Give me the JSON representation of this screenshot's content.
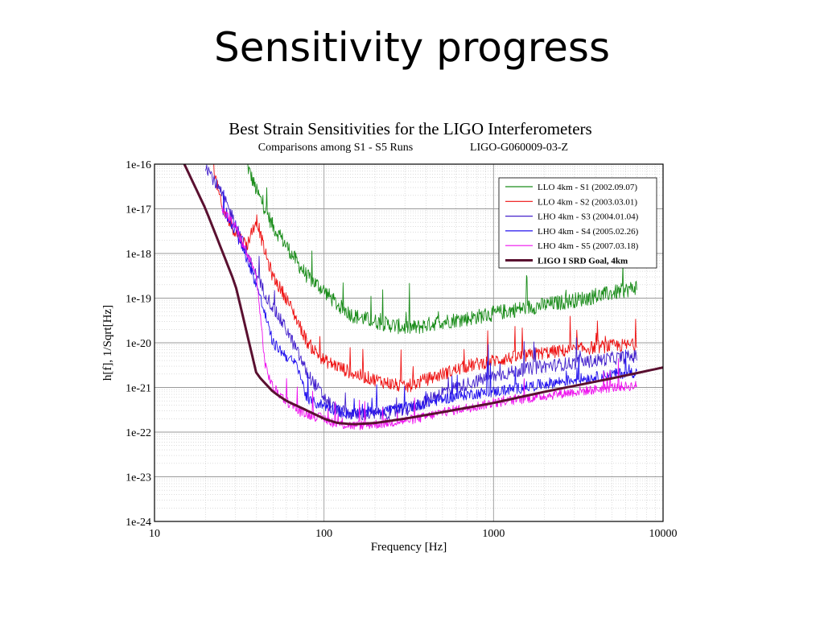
{
  "slide": {
    "title": "Sensitivity progress"
  },
  "colors": {
    "s1": "#1a8c1a",
    "s2": "#ee1111",
    "s3": "#4422cc",
    "s4": "#2211ee",
    "s5": "#ee11ee",
    "goal": "#5a1030"
  },
  "chart_data": {
    "type": "line",
    "title": "Best Strain Sensitivities for the LIGO Interferometers",
    "subtitle": "Comparisons among S1 - S5 Runs",
    "doc_id": "LIGO-G060009-03-Z",
    "xlabel": "Frequency [Hz]",
    "ylabel": "h[f], 1/Sqrt[Hz]",
    "x_scale": "log",
    "y_scale": "log",
    "xlim": [
      10,
      10000
    ],
    "ylim": [
      1e-24,
      1e-16
    ],
    "x_ticks": [
      {
        "v": 10,
        "label": "10"
      },
      {
        "v": 100,
        "label": "100"
      },
      {
        "v": 1000,
        "label": "1000"
      },
      {
        "v": 10000,
        "label": "10000"
      }
    ],
    "y_ticks": [
      {
        "v": 1e-16,
        "label": "1e-16"
      },
      {
        "v": 1e-17,
        "label": "1e-17"
      },
      {
        "v": 1e-18,
        "label": "1e-18"
      },
      {
        "v": 1e-19,
        "label": "1e-19"
      },
      {
        "v": 1e-20,
        "label": "1e-20"
      },
      {
        "v": 1e-21,
        "label": "1e-21"
      },
      {
        "v": 1e-22,
        "label": "1e-22"
      },
      {
        "v": 1e-23,
        "label": "1e-23"
      },
      {
        "v": 1e-24,
        "label": "1e-24"
      }
    ],
    "grid": true,
    "legend_position": "top-right",
    "series": [
      {
        "name": "LLO 4km - S1 (2002.09.07)",
        "color_key": "s1",
        "noise": 0.35,
        "x": [
          35,
          40,
          45,
          50,
          60,
          70,
          80,
          100,
          120,
          150,
          200,
          250,
          300,
          350,
          400,
          500,
          700,
          1000,
          1500,
          2000,
          3000,
          4000,
          5000,
          6000,
          7000
        ],
        "y": [
          1e-16,
          2.5e-17,
          1e-17,
          4e-18,
          1.5e-18,
          6e-19,
          3e-19,
          1.5e-19,
          7e-20,
          4e-20,
          3e-20,
          2.5e-20,
          2.2e-20,
          2.2e-20,
          2.5e-20,
          3e-20,
          3.5e-20,
          4.5e-20,
          6e-20,
          7e-20,
          9e-20,
          1.1e-19,
          1.3e-19,
          1.5e-19,
          1.8e-19
        ]
      },
      {
        "name": "LLO 4km - S2 (2003.03.01)",
        "color_key": "s2",
        "noise": 0.3,
        "x": [
          22,
          25,
          30,
          35,
          40,
          45,
          50,
          60,
          70,
          80,
          100,
          120,
          150,
          200,
          300,
          400,
          500,
          700,
          1000,
          1500,
          2000,
          3000,
          4000,
          5000,
          7000
        ],
        "y": [
          1e-16,
          1e-17,
          3e-18,
          1.5e-18,
          6e-18,
          1e-18,
          3e-19,
          1e-19,
          3e-20,
          1e-20,
          4e-21,
          3e-21,
          2e-21,
          1.5e-21,
          1e-21,
          1.5e-21,
          2e-21,
          3e-21,
          4e-21,
          5e-21,
          6e-21,
          7e-21,
          8e-21,
          8.5e-21,
          9e-21
        ]
      },
      {
        "name": "LHO 4km - S3 (2004.01.04)",
        "color_key": "s3",
        "noise": 0.3,
        "x": [
          20,
          25,
          30,
          35,
          40,
          50,
          60,
          70,
          80,
          100,
          120,
          150,
          200,
          300,
          400,
          500,
          700,
          1000,
          1500,
          2000,
          3000,
          4000,
          5000,
          7000
        ],
        "y": [
          1e-16,
          2e-17,
          5e-18,
          1e-18,
          3e-19,
          6e-20,
          2e-20,
          6e-21,
          2e-21,
          6e-22,
          3e-22,
          2.5e-22,
          2.5e-22,
          3e-22,
          5e-22,
          8e-22,
          1.2e-21,
          1.8e-21,
          2.5e-21,
          3e-21,
          3.5e-21,
          4e-21,
          4.5e-21,
          5e-21
        ]
      },
      {
        "name": "LHO 4km - S4 (2005.02.26)",
        "color_key": "s4",
        "noise": 0.25,
        "x": [
          25,
          30,
          35,
          40,
          50,
          60,
          70,
          80,
          100,
          120,
          150,
          200,
          300,
          400,
          500,
          700,
          1000,
          1500,
          2000,
          3000,
          4000,
          5000,
          7000
        ],
        "y": [
          1e-17,
          3e-18,
          8e-19,
          2e-19,
          1e-20,
          5e-21,
          3e-21,
          5e-22,
          4e-22,
          3e-22,
          2.5e-22,
          3e-22,
          3.5e-22,
          4.5e-22,
          5.5e-22,
          7e-22,
          8e-22,
          1e-21,
          1.2e-21,
          1.5e-21,
          1.7e-21,
          2e-21,
          2.2e-21
        ]
      },
      {
        "name": "LHO 4km - S5 (2007.03.18)",
        "color_key": "s5",
        "noise": 0.22,
        "x": [
          25,
          30,
          35,
          40,
          45,
          50,
          60,
          70,
          80,
          100,
          120,
          150,
          200,
          300,
          400,
          500,
          700,
          1000,
          1500,
          2000,
          3000,
          4000,
          5000,
          7000
        ],
        "y": [
          1e-17,
          4e-18,
          1e-18,
          3e-19,
          3e-21,
          1e-21,
          5e-22,
          3e-22,
          2.5e-22,
          2e-22,
          1.5e-22,
          1.4e-22,
          1.5e-22,
          1.8e-22,
          2.2e-22,
          2.8e-22,
          3.5e-22,
          4.5e-22,
          5.5e-22,
          6.5e-22,
          8e-22,
          9e-22,
          1e-21,
          1.1e-21
        ]
      },
      {
        "name": "LIGO I SRD Goal, 4km",
        "color_key": "goal",
        "width": 3,
        "noise": 0,
        "x": [
          15,
          20,
          30,
          40,
          50,
          60,
          80,
          100,
          120,
          150,
          200,
          300,
          500,
          1000,
          2000,
          5000,
          10000
        ],
        "y": [
          1e-16,
          1e-17,
          2e-19,
          2e-21,
          8e-22,
          5e-22,
          3e-22,
          2e-22,
          1.6e-22,
          1.5e-22,
          1.6e-22,
          2e-22,
          2.8e-22,
          4.5e-22,
          8e-22,
          1.6e-21,
          2.8e-21
        ]
      }
    ]
  }
}
